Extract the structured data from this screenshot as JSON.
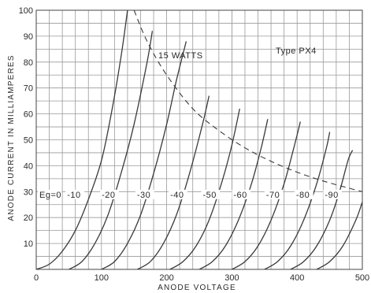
{
  "chart_data": {
    "type": "line",
    "title": "",
    "xlabel": "ANODE VOLTAGE",
    "ylabel": "ANODE CURRENT IN MILLIAMPERES",
    "xlim": [
      0,
      500
    ],
    "ylim": [
      0,
      100
    ],
    "grid": true,
    "x_ticks": [
      "0",
      "100",
      "200",
      "300",
      "400",
      "500"
    ],
    "y_ticks": [
      "10",
      "20",
      "30",
      "40",
      "50",
      "60",
      "70",
      "80",
      "90",
      "100"
    ],
    "annotations": {
      "type_label": "Type  PX4",
      "dissipation_label": "15 WATTS",
      "grid_bias_labels": [
        "Eg=0",
        "-10",
        "-20",
        "-30",
        "-40",
        "-50",
        "-60",
        "-70",
        "-80",
        "-90"
      ]
    },
    "series": [
      {
        "name": "Eg=0",
        "points": [
          [
            0,
            0
          ],
          [
            20,
            2
          ],
          [
            40,
            7
          ],
          [
            60,
            15
          ],
          [
            80,
            27
          ],
          [
            100,
            42
          ],
          [
            115,
            60
          ],
          [
            130,
            82
          ],
          [
            140,
            100
          ]
        ]
      },
      {
        "name": "-10",
        "points": [
          [
            50,
            0
          ],
          [
            70,
            3
          ],
          [
            90,
            10
          ],
          [
            110,
            21
          ],
          [
            130,
            37
          ],
          [
            150,
            56
          ],
          [
            170,
            80
          ],
          [
            178,
            92
          ]
        ]
      },
      {
        "name": "-20",
        "points": [
          [
            100,
            0
          ],
          [
            120,
            3
          ],
          [
            140,
            10
          ],
          [
            160,
            21
          ],
          [
            180,
            37
          ],
          [
            200,
            56
          ],
          [
            215,
            73
          ],
          [
            230,
            88
          ]
        ]
      },
      {
        "name": "-30",
        "points": [
          [
            155,
            0
          ],
          [
            175,
            3
          ],
          [
            195,
            10
          ],
          [
            215,
            21
          ],
          [
            235,
            37
          ],
          [
            255,
            56
          ],
          [
            265,
            67
          ]
        ]
      },
      {
        "name": "-40",
        "points": [
          [
            205,
            0
          ],
          [
            225,
            3
          ],
          [
            245,
            9
          ],
          [
            265,
            19
          ],
          [
            285,
            34
          ],
          [
            300,
            48
          ],
          [
            312,
            62
          ]
        ]
      },
      {
        "name": "-50",
        "points": [
          [
            250,
            0
          ],
          [
            270,
            3
          ],
          [
            290,
            9
          ],
          [
            310,
            19
          ],
          [
            330,
            33
          ],
          [
            345,
            47
          ],
          [
            355,
            58
          ]
        ]
      },
      {
        "name": "-60",
        "points": [
          [
            300,
            0
          ],
          [
            320,
            3
          ],
          [
            340,
            9
          ],
          [
            360,
            19
          ],
          [
            380,
            33
          ],
          [
            395,
            47
          ],
          [
            405,
            57
          ]
        ]
      },
      {
        "name": "-70",
        "points": [
          [
            350,
            0
          ],
          [
            370,
            3
          ],
          [
            390,
            9
          ],
          [
            410,
            19
          ],
          [
            430,
            33
          ],
          [
            445,
            47
          ],
          [
            450,
            53
          ]
        ]
      },
      {
        "name": "-80",
        "points": [
          [
            390,
            0
          ],
          [
            410,
            3
          ],
          [
            430,
            9
          ],
          [
            450,
            19
          ],
          [
            465,
            30
          ],
          [
            478,
            42
          ],
          [
            485,
            46
          ]
        ]
      },
      {
        "name": "-90",
        "points": [
          [
            430,
            0
          ],
          [
            450,
            3
          ],
          [
            470,
            9
          ],
          [
            490,
            19
          ],
          [
            500,
            26
          ]
        ]
      },
      {
        "name": "15 WATTS",
        "points": [
          [
            150,
            100
          ],
          [
            170,
            88
          ],
          [
            200,
            75
          ],
          [
            240,
            62
          ],
          [
            280,
            53.6
          ],
          [
            320,
            46.9
          ],
          [
            360,
            41.7
          ],
          [
            400,
            37.5
          ],
          [
            440,
            34.1
          ],
          [
            480,
            31.3
          ],
          [
            500,
            30
          ]
        ]
      }
    ]
  }
}
